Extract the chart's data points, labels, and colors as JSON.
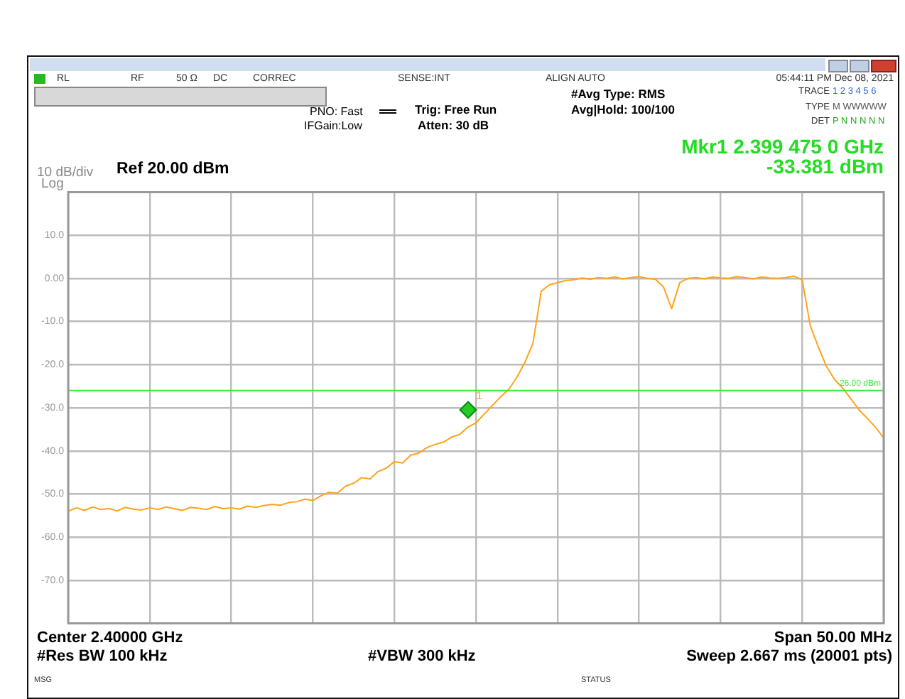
{
  "chart_data": {
    "type": "line",
    "categories": [
      null,
      null,
      null,
      null,
      null,
      null,
      null,
      null,
      null,
      null,
      null,
      null,
      null,
      null,
      null,
      null,
      null,
      null,
      null,
      null,
      null,
      null,
      null,
      null,
      null,
      null,
      null,
      null,
      null,
      null,
      null,
      null,
      null,
      null,
      null,
      null,
      null,
      null,
      null,
      null,
      null,
      null,
      null,
      null,
      null,
      null,
      null,
      null,
      null,
      null,
      null,
      null,
      null,
      null,
      null,
      null,
      null,
      null,
      null,
      null,
      null,
      null,
      null,
      null,
      null,
      null,
      null,
      null,
      null,
      null,
      null,
      null,
      null,
      null,
      null,
      null,
      null,
      null,
      null,
      null,
      null,
      null,
      null,
      null,
      null,
      null,
      null,
      null,
      null,
      null,
      null,
      null,
      null,
      null,
      null,
      null,
      null,
      null,
      null,
      null,
      null
    ],
    "series": [
      {
        "color": "#ffa31a",
        "values": [
          -54,
          -53.2,
          -53.8,
          -53,
          -53.6,
          -53.4,
          -53.9,
          -53.1,
          -53.5,
          -53.7,
          -53.2,
          -53.6,
          -53,
          -53.4,
          -53.8,
          -53.1,
          -53.3,
          -53.6,
          -52.9,
          -53.4,
          -53.2,
          -53.5,
          -52.8,
          -53.1,
          -52.7,
          -52.4,
          -52.6,
          -52,
          -51.8,
          -51.2,
          -51.5,
          -50.4,
          -49.6,
          -49.8,
          -48.2,
          -47.5,
          -46.2,
          -46.5,
          -44.8,
          -44,
          -42.5,
          -42.8,
          -41,
          -40.5,
          -39.2,
          -38.5,
          -38,
          -36.8,
          -36.2,
          -34.5,
          -33.5,
          -31.5,
          -29.5,
          -27.5,
          -25.8,
          -23,
          -19.5,
          -15,
          -3,
          -1.5,
          -1,
          -0.5,
          -0.3,
          0.1,
          -0.2,
          0.2,
          0,
          0.3,
          -0.1,
          0.2,
          0.4,
          0,
          -0.2,
          -2,
          -7,
          -1,
          0,
          0.2,
          -0.1,
          0.3,
          0.1,
          0,
          0.4,
          0.2,
          -0.1,
          0.3,
          0.1,
          0,
          0.2,
          0.5,
          -0.3,
          -11,
          -16,
          -20.5,
          -23.5,
          -25.5,
          -28,
          -30.5,
          -32.5,
          -34.5,
          -37
        ]
      }
    ],
    "ylim": [
      -80,
      20
    ],
    "yticks": [
      {
        "value": 20,
        "label": null
      },
      {
        "value": 10,
        "label": "10.0"
      },
      {
        "value": 0,
        "label": "0.00"
      },
      {
        "value": -10,
        "label": "-10.0"
      },
      {
        "value": -20,
        "label": "-20.0"
      },
      {
        "value": -30,
        "label": "-30.0"
      },
      {
        "value": -40,
        "label": "-40.0"
      },
      {
        "value": -50,
        "label": "-50.0"
      },
      {
        "value": -60,
        "label": "-60.0"
      },
      {
        "value": -70,
        "label": "-70.0"
      },
      {
        "value": -80,
        "label": null
      }
    ],
    "tick_labels": "y",
    "grid": true,
    "legend": false,
    "marker": "none",
    "line_style": "solid",
    "ref_lines": [
      {
        "axis": "y",
        "value": -26,
        "label": "-26.00 dBm",
        "color": "#33ee33"
      }
    ],
    "annotations": [
      "RL",
      "RF",
      "50 Ω",
      "DC",
      "CORREC",
      "SENSE:INT",
      "ALIGN AUTO",
      "05:44:11 PM Dec 08, 2021",
      "PNO: Fast",
      "IFGain:Low",
      "Trig: Free Run",
      "Atten: 30 dB",
      "#Avg Type: RMS",
      "Avg|Hold: 100/100",
      "TRACE",
      "1 2 3 4 5 6",
      "TYPE",
      "M WWWWW",
      "DET",
      "P N N N N N",
      "Mkr1 2.399 475 0 GHz",
      "-33.381 dBm",
      "10 dB/div",
      "Log",
      "Ref 20.00 dBm",
      "Center 2.40000 GHz",
      "Span 50.00 MHz",
      "#Res BW 100 kHz",
      "#VBW 300 kHz",
      "Sweep  2.667 ms (20001 pts)",
      "MSG",
      "STATUS",
      "1"
    ]
  }
}
